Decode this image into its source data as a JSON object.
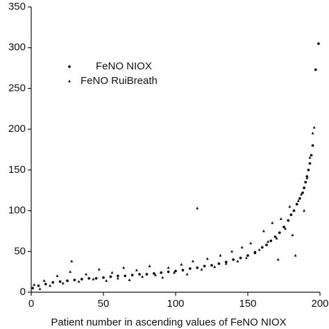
{
  "chart_data": {
    "type": "scatter",
    "x_label": "Patient number in ascending values of FeNO NIOX",
    "xlim": [
      0,
      200
    ],
    "xticks": [
      0,
      50,
      100,
      150,
      200
    ],
    "ylim": [
      0,
      350
    ],
    "yticks": [
      0,
      50,
      100,
      150,
      200,
      250,
      300,
      350
    ],
    "legend": "upper-left",
    "series": [
      {
        "name": "FeNO NIOX",
        "color": "#111111",
        "marker": "dot",
        "x": [
          1,
          5,
          10,
          15,
          20,
          25,
          30,
          35,
          40,
          45,
          50,
          55,
          60,
          65,
          70,
          75,
          80,
          85,
          90,
          95,
          100,
          105,
          110,
          115,
          120,
          125,
          130,
          135,
          140,
          145,
          150,
          155,
          160,
          163,
          166,
          169,
          172,
          175,
          178,
          180,
          182,
          184,
          186,
          188,
          189,
          190,
          191,
          192,
          193,
          194,
          195,
          197,
          199
        ],
        "values": [
          5,
          8,
          10,
          12,
          13,
          14,
          15,
          16,
          17,
          17,
          18,
          19,
          20,
          20,
          21,
          22,
          22,
          23,
          24,
          25,
          26,
          27,
          29,
          30,
          32,
          33,
          35,
          37,
          40,
          42,
          45,
          49,
          55,
          58,
          63,
          68,
          73,
          80,
          88,
          95,
          100,
          108,
          115,
          122,
          128,
          135,
          142,
          150,
          158,
          168,
          180,
          273,
          305
        ]
      },
      {
        "name": "FeNO RuiBreath",
        "color": "#111111",
        "marker": "triangle",
        "x": [
          2,
          6,
          9,
          13,
          18,
          22,
          27,
          28,
          33,
          38,
          43,
          47,
          52,
          56,
          60,
          64,
          68,
          73,
          77,
          82,
          86,
          91,
          95,
          99,
          104,
          108,
          112,
          115,
          118,
          122,
          127,
          131,
          135,
          139,
          143,
          146,
          149,
          152,
          155,
          158,
          161,
          164,
          167,
          170,
          171,
          173,
          176,
          179,
          181,
          183,
          185,
          187,
          189,
          191,
          193,
          195,
          196
        ],
        "values": [
          9,
          4,
          14,
          8,
          20,
          11,
          25,
          38,
          13,
          22,
          16,
          28,
          14,
          24,
          17,
          30,
          15,
          27,
          19,
          32,
          21,
          18,
          30,
          24,
          34,
          22,
          38,
          103,
          28,
          41,
          31,
          45,
          35,
          50,
          38,
          55,
          42,
          60,
          48,
          52,
          75,
          62,
          85,
          66,
          40,
          90,
          78,
          105,
          70,
          45,
          112,
          120,
          100,
          140,
          165,
          195,
          202
        ]
      }
    ]
  }
}
